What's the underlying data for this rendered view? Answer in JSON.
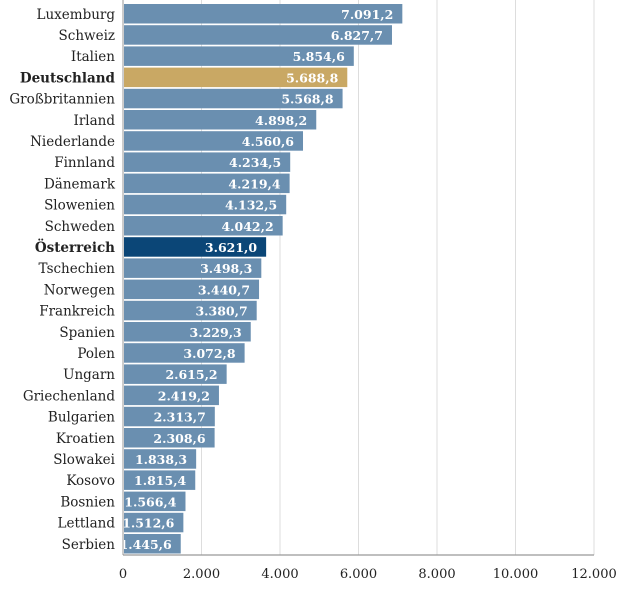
{
  "chart_data": {
    "type": "bar",
    "orientation": "horizontal",
    "title": "",
    "xlabel": "",
    "ylabel": "",
    "xlim": [
      0,
      12000
    ],
    "grid": true,
    "xticks": [
      0,
      2000,
      4000,
      6000,
      8000,
      10000,
      12000
    ],
    "xtick_labels": [
      "0",
      "2.000",
      "4.000",
      "6.000",
      "8.000",
      "10.000",
      "12.000"
    ],
    "categories": [
      "Luxemburg",
      "Schweiz",
      "Italien",
      "Deutschland",
      "Großbritannien",
      "Irland",
      "Niederlande",
      "Finnland",
      "Dänemark",
      "Slowenien",
      "Schweden",
      "Österreich",
      "Tschechien",
      "Norwegen",
      "Frankreich",
      "Spanien",
      "Polen",
      "Ungarn",
      "Griechenland",
      "Bulgarien",
      "Kroatien",
      "Slowakei",
      "Kosovo",
      "Bosnien",
      "Lettland",
      "Serbien"
    ],
    "values": [
      7091.2,
      6827.7,
      5854.6,
      5688.8,
      5568.8,
      4898.2,
      4560.6,
      4234.5,
      4219.4,
      4132.5,
      4042.2,
      3621.0,
      3498.3,
      3440.7,
      3380.7,
      3229.3,
      3072.8,
      2615.2,
      2419.2,
      2313.7,
      2308.6,
      1838.3,
      1815.4,
      1566.4,
      1512.6,
      1445.6
    ],
    "value_labels": [
      "7.091,2",
      "6.827,7",
      "5.854,6",
      "5.688,8",
      "5.568,8",
      "4.898,2",
      "4.560,6",
      "4.234,5",
      "4.219,4",
      "4.132,5",
      "4.042,2",
      "3.621,0",
      "3.498,3",
      "3.440,7",
      "3.380,7",
      "3.229,3",
      "3.072,8",
      "2.615,2",
      "2.419,2",
      "2.313,7",
      "2.308,6",
      "1.838,3",
      "1.815,4",
      "1.566,4",
      "1.512,6",
      "1.445,6"
    ],
    "highlighted": {
      "Deutschland": "#c9a864",
      "Österreich": "#0b4677"
    },
    "default_color": "#6a8fb0",
    "grid_color": "#dddddd",
    "axis_color": "#999999"
  }
}
